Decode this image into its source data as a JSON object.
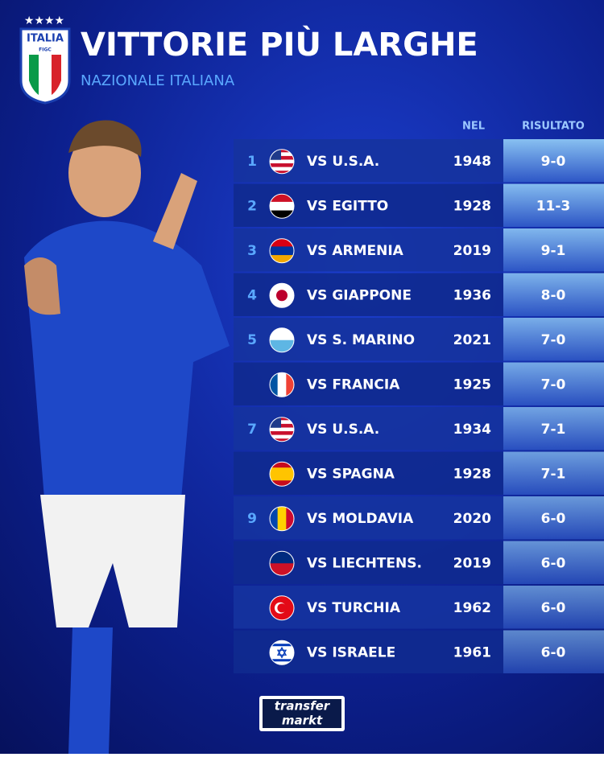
{
  "header": {
    "badge_top": "ITALIA",
    "badge_bottom": "FIGC",
    "title": "VITTORIE PIÙ LARGHE",
    "subtitle": "NAZIONALE ITALIANA"
  },
  "table": {
    "columns": [
      "NEL",
      "RISULTATO"
    ],
    "rows": [
      {
        "rank": 1,
        "opponent": "VS U.S.A.",
        "year": 1948,
        "result": "9-0"
      },
      {
        "rank": 2,
        "opponent": "VS EGITTO",
        "year": 1928,
        "result": "11-3"
      },
      {
        "rank": 3,
        "opponent": "VS ARMENIA",
        "year": 2019,
        "result": "9-1"
      },
      {
        "rank": 4,
        "opponent": "VS GIAPPONE",
        "year": 1936,
        "result": "8-0"
      },
      {
        "rank": 5,
        "opponent": "VS S. MARINO",
        "year": 2021,
        "result": "7-0"
      },
      {
        "rank": null,
        "opponent": "VS FRANCIA",
        "year": 1925,
        "result": "7-0"
      },
      {
        "rank": 7,
        "opponent": "VS U.S.A.",
        "year": 1934,
        "result": "7-1"
      },
      {
        "rank": null,
        "opponent": "VS SPAGNA",
        "year": 1928,
        "result": "7-1"
      },
      {
        "rank": 9,
        "opponent": "VS MOLDAVIA",
        "year": 2020,
        "result": "6-0"
      },
      {
        "rank": null,
        "opponent": "VS LIECHTENS.",
        "year": 2019,
        "result": "6-0"
      },
      {
        "rank": null,
        "opponent": "VS TURCHIA",
        "year": 1962,
        "result": "6-0"
      },
      {
        "rank": null,
        "opponent": "VS ISRAELE",
        "year": 1961,
        "result": "6-0"
      }
    ]
  },
  "footer": {
    "logo_top": "transfer",
    "logo_bottom": "markt"
  }
}
